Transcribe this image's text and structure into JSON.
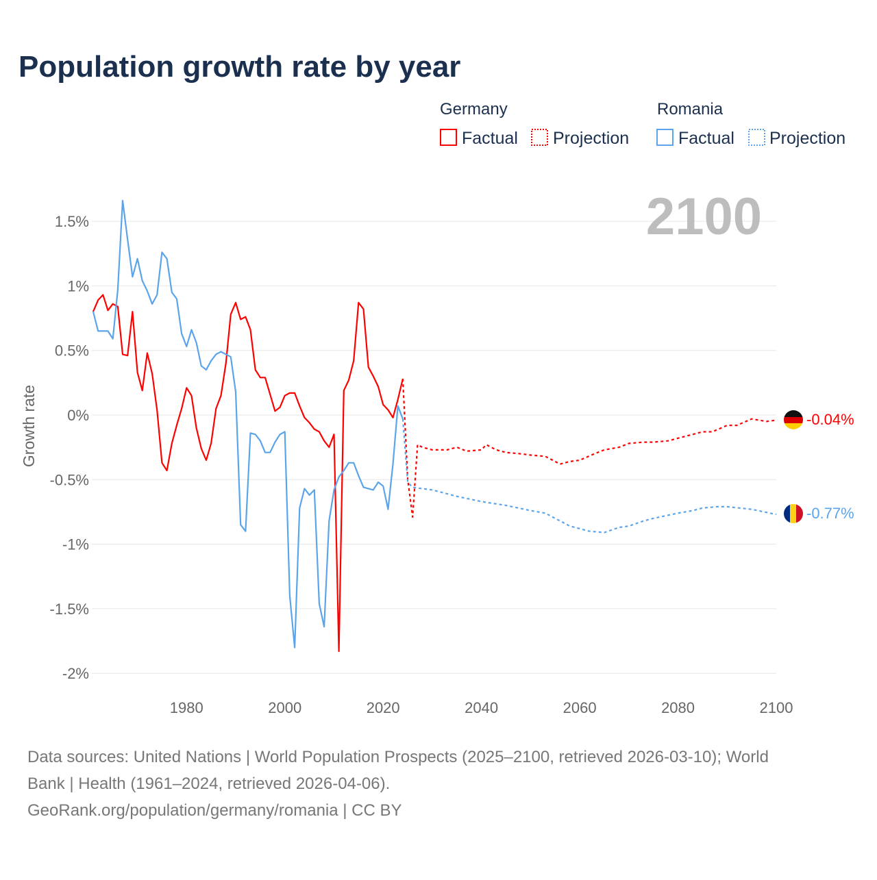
{
  "title": "Population growth rate by year",
  "legend": {
    "groups": [
      {
        "name": "Germany",
        "factual": "Factual",
        "projection": "Projection",
        "color": "#ff0000"
      },
      {
        "name": "Romania",
        "factual": "Factual",
        "projection": "Projection",
        "color": "#5ba4ea"
      }
    ]
  },
  "current_year": "2100",
  "footer": {
    "line1": "Data sources: United Nations | World Population Prospects (2025–2100, retrieved 2026-03-10); World",
    "line2": "Bank | Health (1961–2024, retrieved 2026-04-06).",
    "line3": "GeoRank.org/population/germany/romania | CC BY"
  },
  "end_labels": {
    "germany": "-0.04%",
    "romania": "-0.77%"
  },
  "chart_data": {
    "type": "line",
    "title": "Population growth rate by year",
    "xlabel": "",
    "ylabel": "Growth rate",
    "xlim": [
      1961,
      2100
    ],
    "ylim": [
      -2.1,
      1.75
    ],
    "grid": true,
    "legend_placement": "top-right",
    "x_ticks": [
      1980,
      2000,
      2020,
      2040,
      2060,
      2080,
      2100
    ],
    "x_tick_labels": [
      "1980",
      "2000",
      "2020",
      "2040",
      "2060",
      "2080",
      "2100"
    ],
    "y_ticks": [
      1.5,
      1,
      0.5,
      0,
      -0.5,
      -1,
      -1.5,
      -2
    ],
    "y_tick_labels": [
      "1.5%",
      "1%",
      "0.5%",
      "0%",
      "-0.5%",
      "-1%",
      "-1.5%",
      "-2%"
    ],
    "series": [
      {
        "name": "Germany Factual",
        "color": "#ff0000",
        "dashed": false,
        "x": [
          1961,
          1962,
          1963,
          1964,
          1965,
          1966,
          1967,
          1968,
          1969,
          1970,
          1971,
          1972,
          1973,
          1974,
          1975,
          1976,
          1977,
          1978,
          1979,
          1980,
          1981,
          1982,
          1983,
          1984,
          1985,
          1986,
          1987,
          1988,
          1989,
          1990,
          1991,
          1992,
          1993,
          1994,
          1995,
          1996,
          1997,
          1998,
          1999,
          2000,
          2001,
          2002,
          2003,
          2004,
          2005,
          2006,
          2007,
          2008,
          2009,
          2010,
          2011,
          2012,
          2013,
          2014,
          2015,
          2016,
          2017,
          2018,
          2019,
          2020,
          2021,
          2022,
          2023,
          2024
        ],
        "values": [
          0.8,
          0.89,
          0.93,
          0.81,
          0.86,
          0.84,
          0.47,
          0.46,
          0.8,
          0.33,
          0.19,
          0.48,
          0.32,
          0.04,
          -0.37,
          -0.43,
          -0.22,
          -0.08,
          0.05,
          0.21,
          0.15,
          -0.1,
          -0.26,
          -0.35,
          -0.22,
          0.05,
          0.15,
          0.4,
          0.78,
          0.87,
          0.74,
          0.76,
          0.66,
          0.35,
          0.29,
          0.29,
          0.16,
          0.03,
          0.06,
          0.15,
          0.17,
          0.17,
          0.07,
          -0.02,
          -0.06,
          -0.11,
          -0.13,
          -0.2,
          -0.25,
          -0.15,
          -1.83,
          0.19,
          0.27,
          0.42,
          0.87,
          0.82,
          0.37,
          0.3,
          0.22,
          0.08,
          0.04,
          -0.02,
          0.12,
          0.28
        ]
      },
      {
        "name": "Germany Projection",
        "color": "#ff0000",
        "dashed": true,
        "x": [
          2024,
          2025,
          2026,
          2027,
          2028,
          2030,
          2033,
          2035,
          2037,
          2040,
          2041,
          2043,
          2045,
          2048,
          2050,
          2053,
          2056,
          2058,
          2060,
          2063,
          2065,
          2068,
          2070,
          2073,
          2075,
          2078,
          2080,
          2083,
          2085,
          2087,
          2090,
          2092,
          2095,
          2098,
          2100
        ],
        "values": [
          0.28,
          -0.5,
          -0.79,
          -0.23,
          -0.25,
          -0.27,
          -0.27,
          -0.25,
          -0.28,
          -0.27,
          -0.23,
          -0.27,
          -0.29,
          -0.3,
          -0.31,
          -0.32,
          -0.38,
          -0.36,
          -0.35,
          -0.3,
          -0.27,
          -0.25,
          -0.22,
          -0.21,
          -0.21,
          -0.2,
          -0.18,
          -0.15,
          -0.13,
          -0.13,
          -0.08,
          -0.08,
          -0.03,
          -0.05,
          -0.04
        ]
      },
      {
        "name": "Romania Factual",
        "color": "#5ba4ea",
        "dashed": false,
        "x": [
          1961,
          1962,
          1963,
          1964,
          1965,
          1966,
          1967,
          1968,
          1969,
          1970,
          1971,
          1972,
          1973,
          1974,
          1975,
          1976,
          1977,
          1978,
          1979,
          1980,
          1981,
          1982,
          1983,
          1984,
          1985,
          1986,
          1987,
          1988,
          1989,
          1990,
          1991,
          1992,
          1993,
          1994,
          1995,
          1996,
          1997,
          1998,
          1999,
          2000,
          2001,
          2002,
          2003,
          2004,
          2005,
          2006,
          2007,
          2008,
          2009,
          2010,
          2011,
          2012,
          2013,
          2014,
          2015,
          2016,
          2017,
          2018,
          2019,
          2020,
          2021,
          2022,
          2023,
          2024
        ],
        "values": [
          0.8,
          0.65,
          0.65,
          0.65,
          0.59,
          0.97,
          1.66,
          1.36,
          1.07,
          1.21,
          1.04,
          0.96,
          0.86,
          0.93,
          1.26,
          1.21,
          0.95,
          0.9,
          0.63,
          0.53,
          0.66,
          0.56,
          0.38,
          0.35,
          0.42,
          0.47,
          0.49,
          0.47,
          0.45,
          0.18,
          -0.85,
          -0.9,
          -0.14,
          -0.15,
          -0.2,
          -0.29,
          -0.29,
          -0.21,
          -0.15,
          -0.13,
          -1.4,
          -1.8,
          -0.72,
          -0.57,
          -0.62,
          -0.58,
          -1.46,
          -1.64,
          -0.82,
          -0.58,
          -0.48,
          -0.43,
          -0.37,
          -0.37,
          -0.47,
          -0.56,
          -0.57,
          -0.58,
          -0.52,
          -0.55,
          -0.73,
          -0.38,
          0.07,
          -0.03
        ]
      },
      {
        "name": "Romania Projection",
        "color": "#5ba4ea",
        "dashed": true,
        "x": [
          2024,
          2025,
          2026,
          2030,
          2035,
          2040,
          2045,
          2050,
          2053,
          2055,
          2058,
          2062,
          2065,
          2068,
          2070,
          2073,
          2075,
          2080,
          2083,
          2085,
          2088,
          2090,
          2095,
          2100
        ],
        "values": [
          -0.03,
          -0.52,
          -0.56,
          -0.58,
          -0.63,
          -0.67,
          -0.7,
          -0.74,
          -0.76,
          -0.8,
          -0.86,
          -0.9,
          -0.91,
          -0.87,
          -0.86,
          -0.82,
          -0.8,
          -0.76,
          -0.74,
          -0.72,
          -0.71,
          -0.71,
          -0.73,
          -0.77
        ]
      }
    ]
  }
}
